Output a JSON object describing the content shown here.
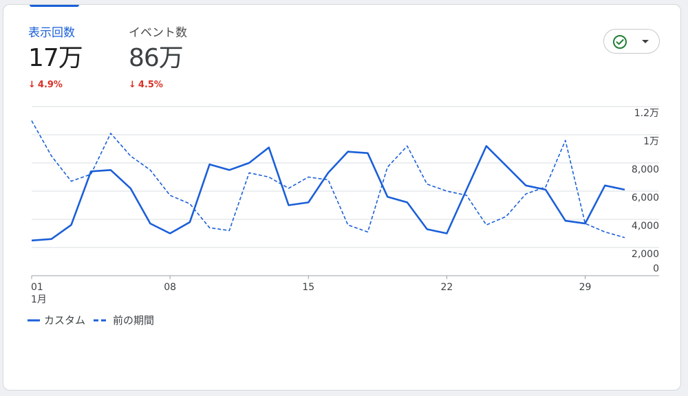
{
  "metrics": [
    {
      "label": "表示回数",
      "value": "17万",
      "change": "4.9%",
      "direction": "down"
    },
    {
      "label": "イベント数",
      "value": "86万",
      "change": "4.5%",
      "direction": "down"
    }
  ],
  "status_icon": "check-circle-icon",
  "colors": {
    "accent": "#1a5fd8",
    "negative": "#d93025",
    "check": "#1e7e34"
  },
  "chart_data": {
    "type": "line",
    "x": [
      1,
      2,
      3,
      4,
      5,
      6,
      7,
      8,
      9,
      10,
      11,
      12,
      13,
      14,
      15,
      16,
      17,
      18,
      19,
      20,
      21,
      22,
      23,
      24,
      25,
      26,
      27,
      28,
      29,
      30,
      31
    ],
    "series": [
      {
        "name": "カスタム",
        "style": "solid",
        "values": [
          2500,
          2600,
          3600,
          7400,
          7500,
          6200,
          3700,
          3000,
          3800,
          7900,
          7500,
          8000,
          9100,
          5000,
          5200,
          7300,
          8800,
          8700,
          5600,
          5200,
          3300,
          3000,
          6100,
          9200,
          7800,
          6400,
          6100,
          3900,
          3700,
          6400,
          6100
        ]
      },
      {
        "name": "前の期間",
        "style": "dashed",
        "values": [
          11000,
          8500,
          6700,
          7200,
          10100,
          8500,
          7500,
          5700,
          5100,
          3400,
          3200,
          7300,
          7000,
          6200,
          7000,
          6800,
          3600,
          3100,
          7700,
          9200,
          6500,
          6000,
          5700,
          3600,
          4200,
          5800,
          6300,
          9600,
          3700,
          3100,
          2700
        ]
      }
    ],
    "x_ticks": [
      {
        "x": 1,
        "label": "01",
        "sublabel": "1月"
      },
      {
        "x": 8,
        "label": "08"
      },
      {
        "x": 15,
        "label": "15"
      },
      {
        "x": 22,
        "label": "22"
      },
      {
        "x": 29,
        "label": "29"
      }
    ],
    "y_ticks": [
      {
        "value": 0,
        "label": "0"
      },
      {
        "value": 2000,
        "label": "2,000"
      },
      {
        "value": 4000,
        "label": "4,000"
      },
      {
        "value": 6000,
        "label": "6,000"
      },
      {
        "value": 8000,
        "label": "8,000"
      },
      {
        "value": 10000,
        "label": "1万"
      },
      {
        "value": 12000,
        "label": "1.2万"
      }
    ],
    "ylim": [
      0,
      12000
    ],
    "grid": true,
    "legend_position": "bottom-left"
  }
}
